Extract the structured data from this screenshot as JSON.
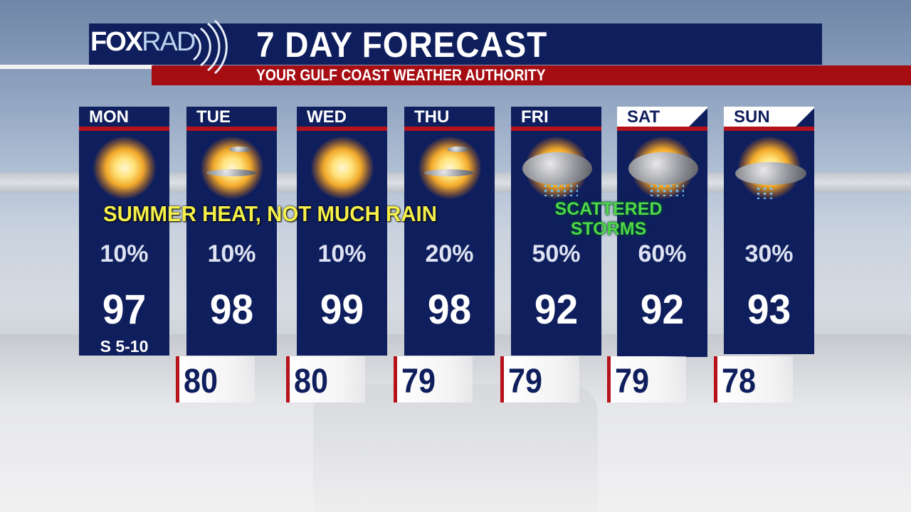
{
  "header": {
    "logo": "FOXRAD",
    "logo_fox": "FOX",
    "logo_rad": "RAD",
    "title": "7 DAY FORECAST",
    "subtitle": "YOUR GULF COAST WEATHER AUTHORITY"
  },
  "colors": {
    "navy": "#0f1e5c",
    "red": "#b5121b",
    "annotation_yellow": "#f5f04a",
    "annotation_green": "#4ed84a"
  },
  "days": [
    {
      "day": "MON",
      "icon": "sunny-icon",
      "pop": "10%",
      "high": "97",
      "wind": "S 5-10"
    },
    {
      "day": "TUE",
      "icon": "mostly-sunny-icon",
      "pop": "10%",
      "high": "98"
    },
    {
      "day": "WED",
      "icon": "sunny-icon",
      "pop": "10%",
      "high": "99"
    },
    {
      "day": "THU",
      "icon": "mostly-sunny-icon",
      "pop": "20%",
      "high": "98"
    },
    {
      "day": "FRI",
      "icon": "thunderstorm-icon",
      "pop": "50%",
      "high": "92"
    },
    {
      "day": "SAT",
      "icon": "thunderstorm-icon",
      "pop": "60%",
      "high": "92"
    },
    {
      "day": "SUN",
      "icon": "partly-cloudy-showers-icon",
      "pop": "30%",
      "high": "93"
    }
  ],
  "lows": [
    "80",
    "80",
    "79",
    "79",
    "79",
    "78"
  ],
  "annotations": {
    "heat": "SUMMER HEAT, NOT MUCH RAIN",
    "storms_line1": "SCATTERED",
    "storms_line2": "STORMS"
  }
}
